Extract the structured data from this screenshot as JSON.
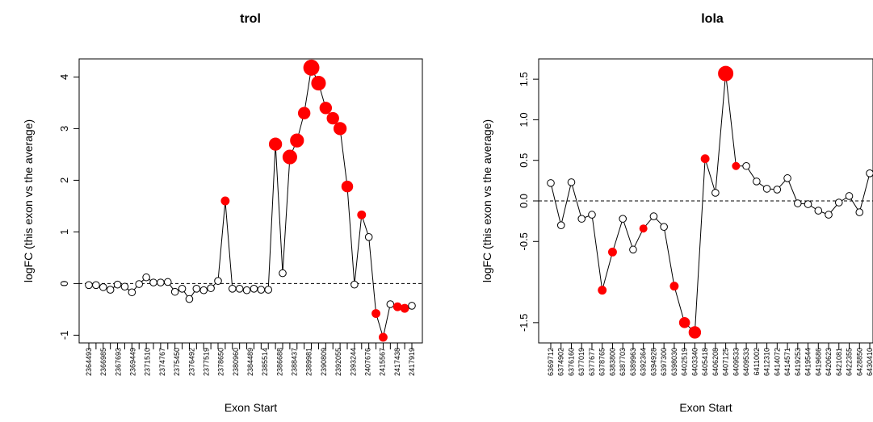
{
  "chart_data": [
    {
      "type": "line",
      "title": "trol",
      "xlabel": "Exon Start",
      "ylabel": "logFC (this exon vs the average)",
      "ylim": [
        -1.15,
        4.35
      ],
      "yticks": [
        -1,
        0,
        1,
        2,
        3,
        4
      ],
      "reference_line": 0,
      "x_tick_labels": [
        "2364493",
        "2366985",
        "2367693",
        "2369449",
        "2371510",
        "2374767",
        "2375450",
        "2376492",
        "2377519",
        "2378650",
        "2380960",
        "2384489",
        "2385514",
        "2386688",
        "2388437",
        "2389981",
        "2390809",
        "2392055",
        "2393244",
        "2407676",
        "2415567",
        "2417438",
        "2417919"
      ],
      "series": [
        {
          "values": [
            -0.03,
            -0.03,
            -0.07,
            -0.12,
            -0.02,
            -0.06,
            -0.17,
            -0.01,
            0.12,
            0.02,
            0.02,
            0.03,
            -0.16,
            -0.1,
            -0.3,
            -0.1,
            -0.13,
            -0.09,
            0.05,
            1.6,
            -0.1,
            -0.1,
            -0.13,
            -0.1,
            -0.12,
            -0.12,
            2.7,
            0.2,
            2.45,
            2.77,
            3.3,
            4.18,
            3.88,
            3.4,
            3.2,
            3.0,
            1.88,
            -0.02,
            1.33,
            0.9,
            -0.58,
            -1.04,
            -0.4,
            -0.45,
            -0.48,
            -0.43
          ],
          "significant": [
            false,
            false,
            false,
            false,
            false,
            false,
            false,
            false,
            false,
            false,
            false,
            false,
            false,
            false,
            false,
            false,
            false,
            false,
            false,
            true,
            false,
            false,
            false,
            false,
            false,
            false,
            true,
            false,
            true,
            true,
            true,
            true,
            true,
            true,
            true,
            true,
            true,
            false,
            true,
            false,
            true,
            true,
            false,
            true,
            true,
            false
          ],
          "point_size": [
            1,
            1,
            1,
            1,
            1,
            1,
            1,
            1,
            1,
            1,
            1,
            1,
            1,
            1,
            1,
            1,
            1,
            1,
            1,
            1.1,
            1,
            1,
            1,
            1,
            1,
            1,
            1.7,
            1,
            1.9,
            1.8,
            1.6,
            2.1,
            1.9,
            1.6,
            1.6,
            1.7,
            1.5,
            1,
            1.1,
            1,
            1.1,
            1.1,
            1,
            1.1,
            1.1,
            1
          ]
        }
      ]
    },
    {
      "type": "line",
      "title": "lola",
      "xlabel": "Exon Start",
      "ylabel": "logFC (this exon vs the average)",
      "ylim": [
        -1.75,
        1.75
      ],
      "yticks": [
        -1.5,
        -0.5,
        0.0,
        0.5,
        1.0,
        1.5
      ],
      "ytick_labels": [
        "-1.5",
        "-0.5",
        "0.0",
        "0.5",
        "1.0",
        "1.5"
      ],
      "reference_line": 0,
      "x_tick_labels": [
        "6369712",
        "6374902",
        "6376160",
        "6377019",
        "6377677",
        "6378765",
        "6383800",
        "6387703",
        "6389963",
        "6392364",
        "6394928",
        "6397300",
        "6398030",
        "6402519",
        "6403340",
        "6405418",
        "6406208",
        "6407125",
        "6409533",
        "6409533",
        "6411002",
        "6412310",
        "6414072",
        "6414571",
        "6419253",
        "6419544",
        "6419686",
        "6420623",
        "6421081",
        "6422355",
        "6428850",
        "6430410"
      ],
      "series": [
        {
          "values": [
            0.22,
            -0.3,
            0.23,
            -0.22,
            -0.17,
            -1.1,
            -0.63,
            -0.22,
            -0.6,
            -0.34,
            -0.19,
            -0.32,
            -1.05,
            -1.5,
            -1.62,
            0.52,
            0.1,
            1.57,
            0.43,
            0.43,
            0.24,
            0.15,
            0.14,
            0.28,
            -0.03,
            -0.04,
            -0.12,
            -0.17,
            -0.02,
            0.06,
            -0.14,
            0.34
          ],
          "significant": [
            false,
            false,
            false,
            false,
            false,
            true,
            true,
            false,
            false,
            true,
            false,
            false,
            true,
            true,
            true,
            true,
            false,
            true,
            true,
            false,
            false,
            false,
            false,
            false,
            false,
            false,
            false,
            false,
            false,
            false,
            false,
            false
          ],
          "point_size": [
            1,
            1,
            1,
            1,
            1,
            1.1,
            1.1,
            1,
            1,
            1,
            1,
            1,
            1.1,
            1.4,
            1.6,
            1.1,
            1,
            2.0,
            1,
            1,
            1,
            1,
            1,
            1,
            1,
            1,
            1,
            1,
            1,
            1,
            1,
            1
          ]
        }
      ]
    }
  ]
}
